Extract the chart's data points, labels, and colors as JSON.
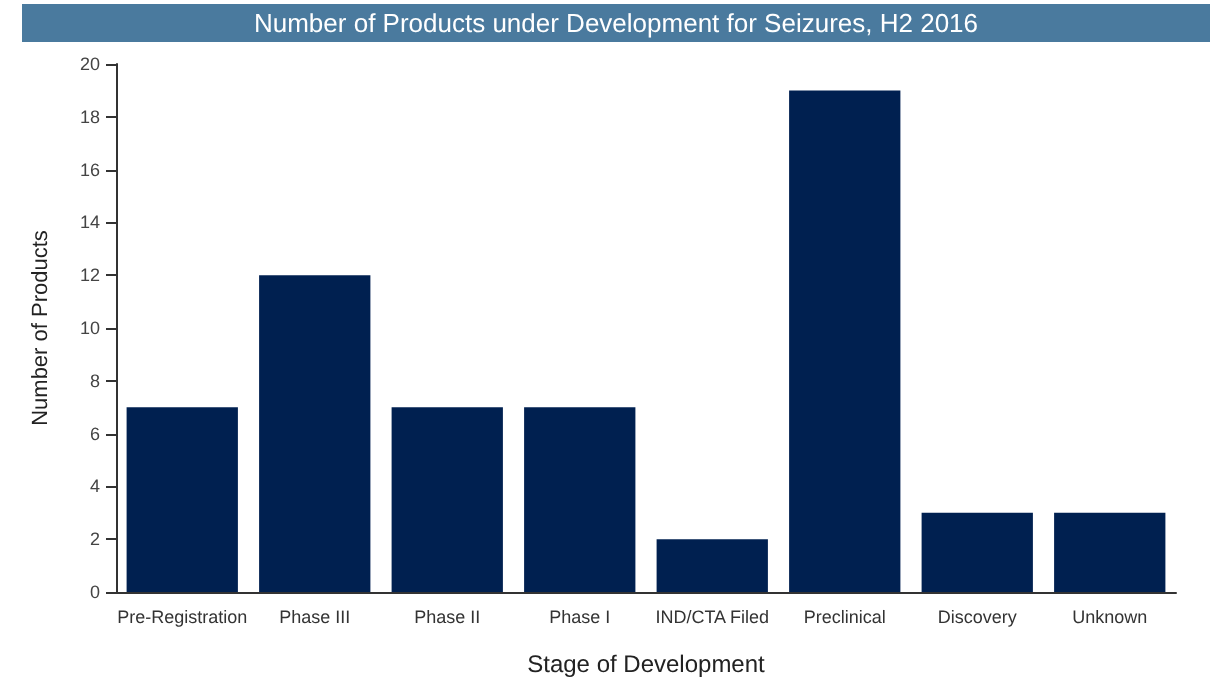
{
  "chart_data": {
    "type": "bar",
    "title": "Number of Products under Development for Seizures, H2 2016",
    "xlabel": "Stage of Development",
    "ylabel": "Number of Products",
    "categories": [
      "Pre-Registration",
      "Phase III",
      "Phase II",
      "Phase I",
      "IND/CTA Filed",
      "Preclinical",
      "Discovery",
      "Unknown"
    ],
    "values": [
      7,
      12,
      7,
      7,
      2,
      19,
      3,
      3
    ],
    "color": "#002050",
    "ylim": [
      0,
      20
    ],
    "yticks": [
      0,
      2,
      4,
      6,
      8,
      10,
      12,
      14,
      16,
      18,
      20
    ],
    "grid": false
  }
}
